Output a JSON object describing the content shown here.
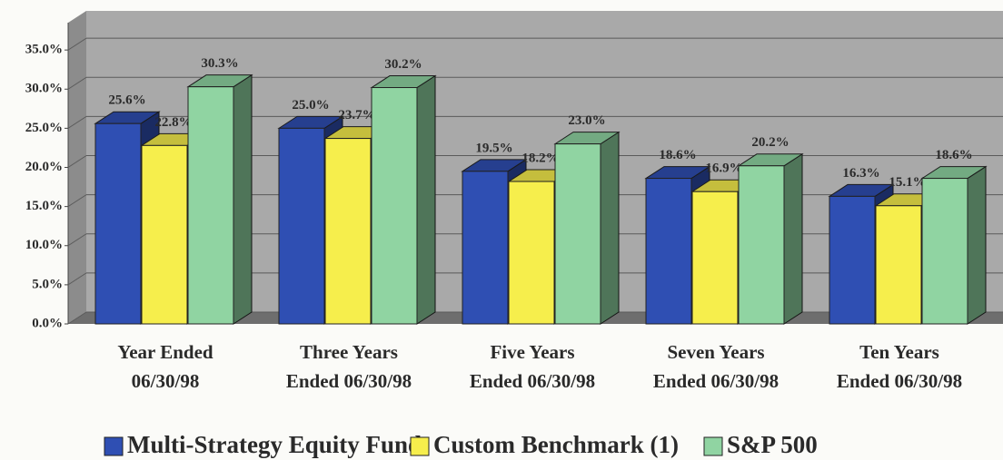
{
  "chart_data": {
    "type": "bar3d",
    "categories": [
      [
        "Year Ended",
        "06/30/98"
      ],
      [
        "Three  Years",
        "Ended 06/30/98"
      ],
      [
        "Five  Years",
        "Ended 06/30/98"
      ],
      [
        "Seven  Years",
        "Ended 06/30/98"
      ],
      [
        "Ten  Years",
        "Ended 06/30/98"
      ]
    ],
    "series": [
      {
        "name": "Multi-Strategy Equity Fund",
        "color": "#2f4fb3",
        "values": [
          25.6,
          25.0,
          19.5,
          18.6,
          16.3
        ],
        "value_labels": [
          "25.6%",
          "25.0%",
          "19.5%",
          "18.6%",
          "16.3%"
        ]
      },
      {
        "name": "Custom Benchmark (1)",
        "color": "#f6ee4c",
        "values": [
          22.8,
          23.7,
          18.2,
          16.9,
          15.1
        ],
        "value_labels": [
          "22.8%",
          "23.7%",
          "18.2%",
          "16.9%",
          "15.1%"
        ]
      },
      {
        "name": "S&P 500",
        "color": "#90d4a2",
        "values": [
          30.3,
          30.2,
          23.0,
          20.2,
          18.6
        ],
        "value_labels": [
          "30.3%",
          "30.2%",
          "23.0%",
          "20.2%",
          "18.6%"
        ]
      }
    ],
    "ylim": [
      0,
      40
    ],
    "yticks": [
      {
        "value": 0,
        "label": "0.0%"
      },
      {
        "value": 5,
        "label": "5.0%"
      },
      {
        "value": 10,
        "label": "10.0%"
      },
      {
        "value": 15,
        "label": "15.0%"
      },
      {
        "value": 20,
        "label": "20.0%"
      },
      {
        "value": 25,
        "label": "25.0%"
      },
      {
        "value": 30,
        "label": "30.0%"
      },
      {
        "value": 35,
        "label": "35.0%"
      }
    ],
    "grid": true,
    "legend": "bottom"
  }
}
